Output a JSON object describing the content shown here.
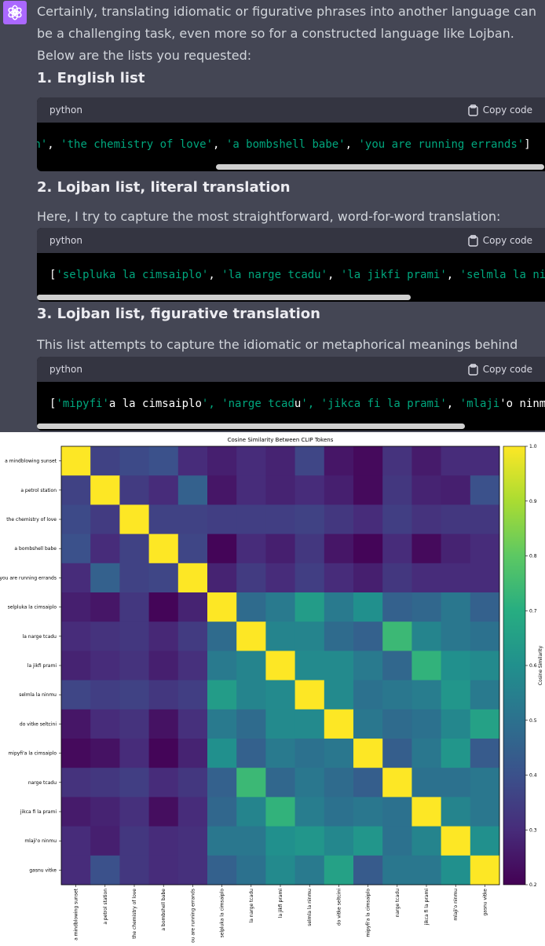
{
  "message": {
    "intro": "Certainly, translating idiomatic or figurative phrases into another language can be a challenging task, even more so for a constructed language like Lojban. Below are the lists you requested:",
    "sections": [
      {
        "heading": "1. English list",
        "description": "",
        "language": "python",
        "copy_label": "Copy code",
        "code_visible": [
          {
            "t": "on'",
            "s": true
          },
          {
            "t": ", ",
            "s": false
          },
          {
            "t": "'the chemistry of love'",
            "s": true
          },
          {
            "t": ", ",
            "s": false
          },
          {
            "t": "'a bombshell babe'",
            "s": true
          },
          {
            "t": ", ",
            "s": false
          },
          {
            "t": "'you are running errands'",
            "s": true
          },
          {
            "t": "]",
            "s": false
          }
        ]
      },
      {
        "heading": "2. Lojban list, literal translation",
        "description": "Here, I try to capture the most straightforward, word-for-word translation:",
        "language": "python",
        "copy_label": "Copy code",
        "code_visible": [
          {
            "t": "[",
            "s": false
          },
          {
            "t": "'selpluka la cimsaiplo'",
            "s": true
          },
          {
            "t": ", ",
            "s": false
          },
          {
            "t": "'la narge tcadu'",
            "s": true
          },
          {
            "t": ", ",
            "s": false
          },
          {
            "t": "'la jikfi prami'",
            "s": true
          },
          {
            "t": ", ",
            "s": false
          },
          {
            "t": "'selmla la nir",
            "s": true
          }
        ]
      },
      {
        "heading": "3. Lojban list, figurative translation",
        "description": "This list attempts to capture the idiomatic or metaphorical meanings behind each phrase:",
        "language": "python",
        "copy_label": "Copy code",
        "code_visible": [
          {
            "t": "[",
            "s": false
          },
          {
            "t": "'mipyfi'",
            "s": true
          },
          {
            "t": "a la cimsaiplo",
            "s": false
          },
          {
            "t": "', ",
            "s": true
          },
          {
            "t": "'narge tcad",
            "s": true
          },
          {
            "t": "u",
            "s": false
          },
          {
            "t": "', ",
            "s": true
          },
          {
            "t": "'jikca fi la prami'",
            "s": true
          },
          {
            "t": ", ",
            "s": false
          },
          {
            "t": "'mlaji",
            "s": true
          },
          {
            "t": "'o ninmu",
            "s": false
          }
        ]
      }
    ]
  },
  "colors": {
    "chat_bg": "#444654",
    "code_bg": "#000000",
    "code_header_bg": "#343541",
    "string": "#00a67d",
    "avatar": "#ab68ff"
  },
  "chart_data": {
    "type": "heatmap",
    "title": "Cosine Similarity Between CLIP Tokens",
    "labels": [
      "a mindblowing sunset",
      "a petrol station",
      "the chemistry of love",
      "a bombshell babe",
      "you are running errands",
      "selpluka la cimsaiplo",
      "la narge tcadu",
      "la jikfi prami",
      "selmla la ninmu",
      "do vitke seltcini",
      "mipyfi'a la cimsaiplo",
      "narge tcadu",
      "jikca fi la prami",
      "mlaji'o ninmu",
      "gasnu vitke"
    ],
    "colorbar_label": "Cosine Similarity",
    "colorbar_ticks": [
      "0.2",
      "0.3",
      "0.4",
      "0.5",
      "0.6",
      "0.7",
      "0.8",
      "0.9",
      "1.0"
    ],
    "vmin": 0.2,
    "vmax": 1.0,
    "colormap": "viridis",
    "matrix": [
      [
        1.0,
        0.36,
        0.38,
        0.4,
        0.3,
        0.27,
        0.3,
        0.28,
        0.37,
        0.25,
        0.22,
        0.32,
        0.26,
        0.3,
        0.3
      ],
      [
        0.36,
        1.0,
        0.34,
        0.3,
        0.45,
        0.25,
        0.3,
        0.28,
        0.3,
        0.27,
        0.22,
        0.33,
        0.28,
        0.27,
        0.4
      ],
      [
        0.38,
        0.34,
        1.0,
        0.36,
        0.36,
        0.35,
        0.35,
        0.35,
        0.36,
        0.33,
        0.3,
        0.35,
        0.32,
        0.33,
        0.33
      ],
      [
        0.4,
        0.3,
        0.36,
        1.0,
        0.37,
        0.21,
        0.3,
        0.27,
        0.33,
        0.25,
        0.21,
        0.3,
        0.22,
        0.28,
        0.3
      ],
      [
        0.3,
        0.45,
        0.36,
        0.37,
        1.0,
        0.28,
        0.34,
        0.3,
        0.35,
        0.3,
        0.27,
        0.33,
        0.3,
        0.3,
        0.3
      ],
      [
        0.27,
        0.25,
        0.33,
        0.21,
        0.28,
        1.0,
        0.48,
        0.53,
        0.64,
        0.53,
        0.6,
        0.45,
        0.47,
        0.52,
        0.45
      ],
      [
        0.3,
        0.32,
        0.33,
        0.29,
        0.34,
        0.48,
        1.0,
        0.56,
        0.56,
        0.48,
        0.45,
        0.74,
        0.56,
        0.52,
        0.5
      ],
      [
        0.28,
        0.3,
        0.32,
        0.27,
        0.31,
        0.53,
        0.56,
        1.0,
        0.58,
        0.58,
        0.53,
        0.47,
        0.72,
        0.6,
        0.58
      ],
      [
        0.37,
        0.35,
        0.36,
        0.33,
        0.35,
        0.64,
        0.56,
        0.58,
        1.0,
        0.58,
        0.5,
        0.52,
        0.54,
        0.62,
        0.53
      ],
      [
        0.25,
        0.3,
        0.32,
        0.24,
        0.31,
        0.53,
        0.48,
        0.58,
        0.58,
        1.0,
        0.52,
        0.48,
        0.5,
        0.57,
        0.66
      ],
      [
        0.22,
        0.24,
        0.3,
        0.21,
        0.28,
        0.6,
        0.45,
        0.53,
        0.5,
        0.52,
        1.0,
        0.44,
        0.52,
        0.62,
        0.43
      ],
      [
        0.32,
        0.33,
        0.35,
        0.3,
        0.33,
        0.45,
        0.74,
        0.47,
        0.52,
        0.48,
        0.44,
        1.0,
        0.5,
        0.5,
        0.52
      ],
      [
        0.26,
        0.28,
        0.31,
        0.23,
        0.3,
        0.47,
        0.56,
        0.72,
        0.54,
        0.5,
        0.52,
        0.5,
        1.0,
        0.56,
        0.52
      ],
      [
        0.3,
        0.27,
        0.33,
        0.3,
        0.31,
        0.52,
        0.52,
        0.6,
        0.62,
        0.57,
        0.62,
        0.5,
        0.56,
        1.0,
        0.6
      ],
      [
        0.3,
        0.4,
        0.33,
        0.3,
        0.31,
        0.45,
        0.5,
        0.58,
        0.53,
        0.66,
        0.43,
        0.52,
        0.52,
        0.6,
        1.0
      ]
    ]
  }
}
